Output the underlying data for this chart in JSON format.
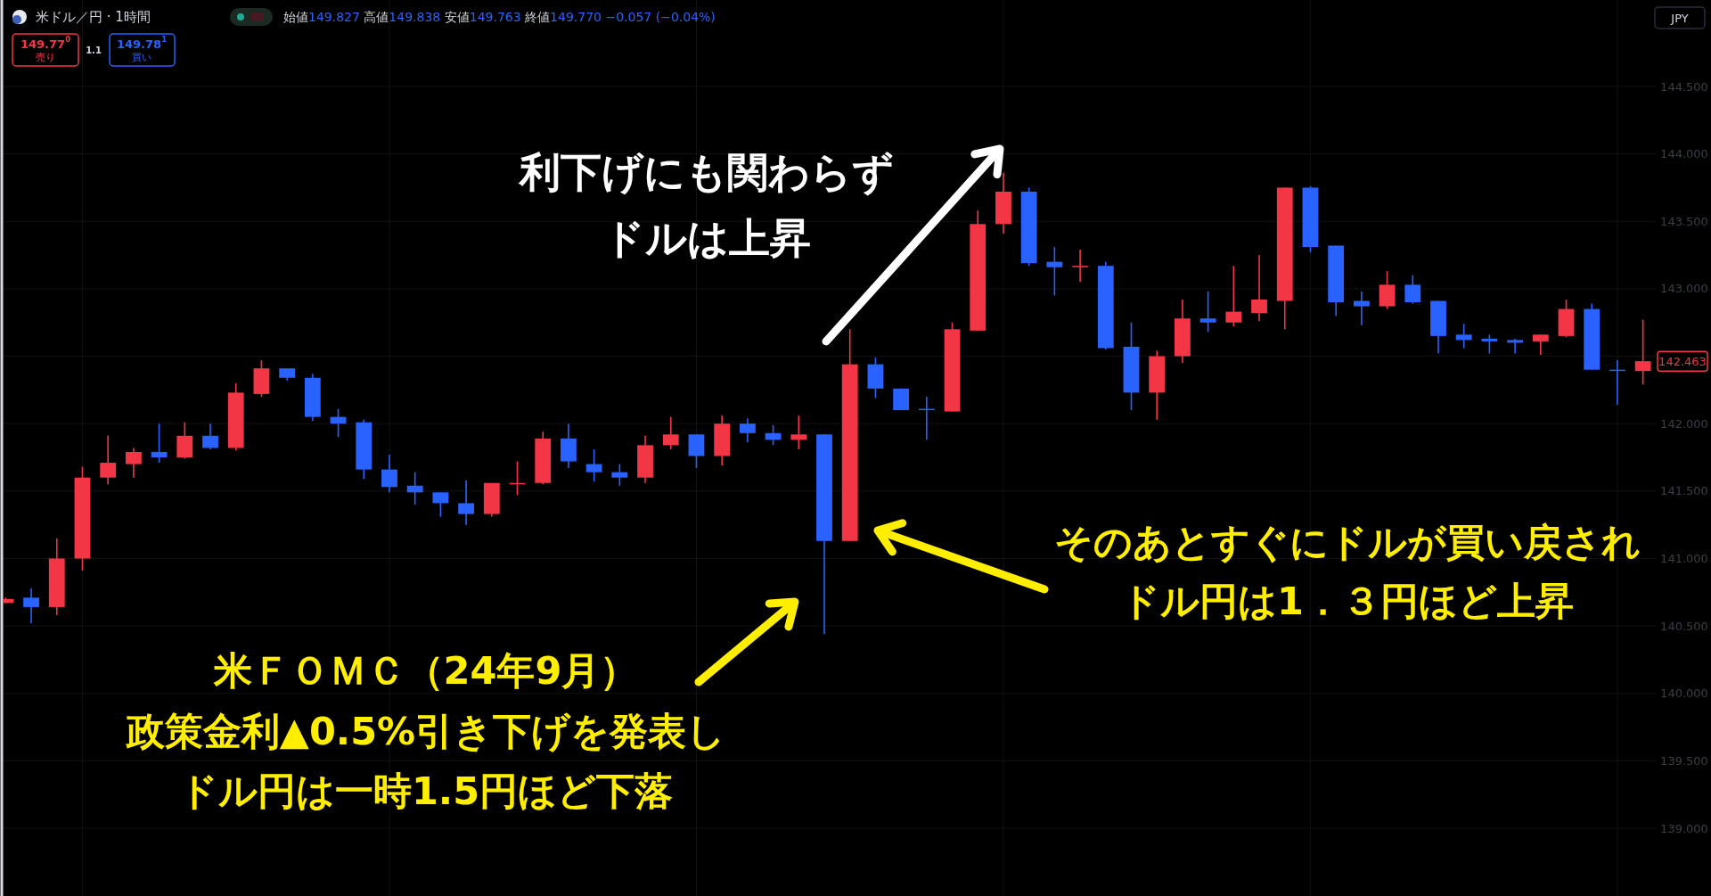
{
  "chart_data": {
    "type": "candlestick",
    "categories": [
      null,
      null,
      null,
      null,
      null,
      null,
      null,
      null,
      null,
      null,
      null,
      null,
      null,
      null,
      null,
      null,
      null,
      null,
      null,
      null,
      null,
      null,
      null,
      null,
      null,
      null,
      null,
      null,
      null,
      null,
      null,
      null,
      null,
      null,
      null,
      null,
      null,
      null,
      null,
      null,
      null,
      null,
      null,
      null,
      null,
      null,
      null,
      null,
      null,
      null,
      null,
      null,
      null,
      null,
      null,
      null,
      null,
      null,
      null,
      null,
      null,
      null,
      null,
      null,
      null
    ],
    "ohlc": [
      [
        140.67,
        140.71,
        140.67,
        140.7
      ],
      [
        140.71,
        140.78,
        140.52,
        140.64
      ],
      [
        140.64,
        141.15,
        140.58,
        141.0
      ],
      [
        141.0,
        141.68,
        140.91,
        141.6
      ],
      [
        141.6,
        141.91,
        141.55,
        141.71
      ],
      [
        141.7,
        141.82,
        141.6,
        141.79
      ],
      [
        141.79,
        142.0,
        141.71,
        141.75
      ],
      [
        141.75,
        142.01,
        141.74,
        141.91
      ],
      [
        141.91,
        142.0,
        141.81,
        141.82
      ],
      [
        141.82,
        142.3,
        141.8,
        142.23
      ],
      [
        142.22,
        142.47,
        142.2,
        142.41
      ],
      [
        142.41,
        142.41,
        142.32,
        142.34
      ],
      [
        142.34,
        142.37,
        142.02,
        142.05
      ],
      [
        142.05,
        142.11,
        141.9,
        142.0
      ],
      [
        142.01,
        142.03,
        141.59,
        141.66
      ],
      [
        141.66,
        141.77,
        141.49,
        141.53
      ],
      [
        141.54,
        141.64,
        141.4,
        141.49
      ],
      [
        141.49,
        141.49,
        141.31,
        141.41
      ],
      [
        141.41,
        141.58,
        141.25,
        141.33
      ],
      [
        141.33,
        141.56,
        141.31,
        141.56
      ],
      [
        141.55,
        141.72,
        141.47,
        141.56
      ],
      [
        141.56,
        141.94,
        141.55,
        141.89
      ],
      [
        141.89,
        142.0,
        141.67,
        141.72
      ],
      [
        141.7,
        141.81,
        141.57,
        141.64
      ],
      [
        141.64,
        141.7,
        141.54,
        141.6
      ],
      [
        141.6,
        141.91,
        141.56,
        141.84
      ],
      [
        141.84,
        142.05,
        141.81,
        141.92
      ],
      [
        141.92,
        141.92,
        141.67,
        141.76
      ],
      [
        141.76,
        142.06,
        141.69,
        142.0
      ],
      [
        142.0,
        142.04,
        141.86,
        141.93
      ],
      [
        141.93,
        141.99,
        141.84,
        141.88
      ],
      [
        141.88,
        142.06,
        141.81,
        141.92
      ],
      [
        141.92,
        141.92,
        140.44,
        141.13
      ],
      [
        141.13,
        142.7,
        141.13,
        142.44
      ],
      [
        142.44,
        142.49,
        142.19,
        142.26
      ],
      [
        142.26,
        142.26,
        142.1,
        142.1
      ],
      [
        142.11,
        142.2,
        141.88,
        142.1
      ],
      [
        142.09,
        142.75,
        142.09,
        142.7
      ],
      [
        142.69,
        143.58,
        142.69,
        143.48
      ],
      [
        143.48,
        143.86,
        143.41,
        143.72
      ],
      [
        143.72,
        143.75,
        143.17,
        143.19
      ],
      [
        143.2,
        143.31,
        142.95,
        143.16
      ],
      [
        143.16,
        143.29,
        143.05,
        143.17
      ],
      [
        143.17,
        143.2,
        142.55,
        142.56
      ],
      [
        142.57,
        142.75,
        142.1,
        142.23
      ],
      [
        142.23,
        142.54,
        142.03,
        142.5
      ],
      [
        142.5,
        142.92,
        142.45,
        142.78
      ],
      [
        142.78,
        142.98,
        142.68,
        142.75
      ],
      [
        142.75,
        143.17,
        142.72,
        142.83
      ],
      [
        142.82,
        143.25,
        142.76,
        142.92
      ],
      [
        142.91,
        143.75,
        142.7,
        143.75
      ],
      [
        143.75,
        143.76,
        143.27,
        143.31
      ],
      [
        143.32,
        143.32,
        142.8,
        142.9
      ],
      [
        142.91,
        142.98,
        142.73,
        142.87
      ],
      [
        142.87,
        143.13,
        142.85,
        143.03
      ],
      [
        143.03,
        143.1,
        142.89,
        142.9
      ],
      [
        142.91,
        142.91,
        142.52,
        142.65
      ],
      [
        142.66,
        142.74,
        142.56,
        142.62
      ],
      [
        142.63,
        142.66,
        142.52,
        142.61
      ],
      [
        142.62,
        142.63,
        142.52,
        142.6
      ],
      [
        142.61,
        142.66,
        142.51,
        142.66
      ],
      [
        142.65,
        142.92,
        142.64,
        142.85
      ],
      [
        142.85,
        142.89,
        142.4,
        142.4
      ],
      [
        142.4,
        142.47,
        142.14,
        142.39
      ],
      [
        142.39,
        142.77,
        142.29,
        142.463
      ]
    ],
    "colors": [
      "#f23645",
      "#2962ff",
      "#f23645",
      "#f23645",
      "#f23645",
      "#f23645",
      "#2962ff",
      "#f23645",
      "#2962ff",
      "#f23645",
      "#f23645",
      "#2962ff",
      "#2962ff",
      "#2962ff",
      "#2962ff",
      "#2962ff",
      "#2962ff",
      "#2962ff",
      "#2962ff",
      "#f23645",
      "#f23645",
      "#f23645",
      "#2962ff",
      "#2962ff",
      "#2962ff",
      "#f23645",
      "#f23645",
      "#2962ff",
      "#f23645",
      "#2962ff",
      "#2962ff",
      "#f23645",
      "#2962ff",
      "#f23645",
      "#2962ff",
      "#2962ff",
      "#2962ff",
      "#f23645",
      "#f23645",
      "#f23645",
      "#2962ff",
      "#2962ff",
      "#f23645",
      "#2962ff",
      "#2962ff",
      "#f23645",
      "#f23645",
      "#2962ff",
      "#f23645",
      "#f23645",
      "#f23645",
      "#2962ff",
      "#2962ff",
      "#2962ff",
      "#f23645",
      "#2962ff",
      "#2962ff",
      "#2962ff",
      "#2962ff",
      "#2962ff",
      "#f23645",
      "#f23645",
      "#2962ff",
      "#2962ff",
      "#f23645"
    ],
    "ylim": [
      139,
      144.5
    ],
    "yticks": [
      {
        "value": 139,
        "label": "139.000"
      },
      {
        "value": 139.5,
        "label": "139.500"
      },
      {
        "value": 140,
        "label": "140.000"
      },
      {
        "value": 140.5,
        "label": "140.500"
      },
      {
        "value": 141,
        "label": "141.000"
      },
      {
        "value": 141.5,
        "label": "141.500"
      },
      {
        "value": 142,
        "label": "142.000"
      },
      {
        "value": 142.5,
        "label": null
      },
      {
        "value": 143,
        "label": "143.000"
      },
      {
        "value": 143.5,
        "label": "143.500"
      },
      {
        "value": 144,
        "label": "144.000"
      },
      {
        "value": 144.5,
        "label": "144.500"
      }
    ],
    "grid": true,
    "tick_labels": "y",
    "annotations": [
      "米ドル／円 · 1時間",
      "始値149.827 高値149.838 安値149.763 終値149.770 −0.057 (−0.04%)",
      "149.77$^{0}$",
      "売り",
      "1.1",
      "149.78$^{1}$",
      "買い",
      "JPY",
      "利下げにも関わらず",
      "ドルは上昇",
      "米ＦＯＭＣ（24年9月）",
      "政策金利▲0.5%引き下げを発表し",
      "ドル円は一時1.5円ほど下落",
      "そのあとすぐにドルが買い戻され",
      "ドル円は1．３円ほど上昇",
      "142.463"
    ]
  }
}
